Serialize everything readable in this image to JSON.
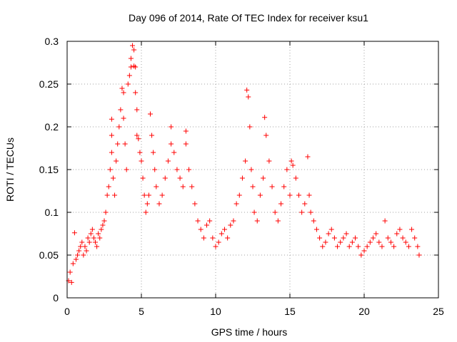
{
  "chart_data": {
    "type": "scatter",
    "title": "Day 096 of 2014, Rate Of TEC Index for receiver ksu1",
    "xlabel": "GPS time / hours",
    "ylabel": "ROTI / TECUs",
    "xlim": [
      0,
      25
    ],
    "ylim": [
      0,
      0.3
    ],
    "xticks": [
      0,
      5,
      10,
      15,
      20,
      25
    ],
    "yticks": [
      0,
      0.05,
      0.1,
      0.15,
      0.2,
      0.25,
      0.3
    ],
    "xtick_labels": [
      "0",
      "5",
      "10",
      "15",
      "20",
      "25"
    ],
    "ytick_labels": [
      "0",
      "0.05",
      "0.1",
      "0.15",
      "0.2",
      "0.25",
      "0.3"
    ],
    "grid": true,
    "marker": "+",
    "series": [
      {
        "name": "ROTI",
        "color": "#ff0000",
        "x": [
          0.1,
          0.2,
          0.3,
          0.4,
          0.5,
          0.6,
          0.7,
          0.8,
          0.9,
          1.0,
          1.1,
          1.2,
          1.3,
          1.4,
          1.5,
          1.6,
          1.7,
          1.8,
          1.9,
          2.0,
          2.1,
          2.2,
          2.3,
          2.4,
          2.5,
          2.6,
          2.7,
          2.8,
          2.9,
          3.0,
          3.0,
          3.0,
          3.1,
          3.2,
          3.3,
          3.4,
          3.5,
          3.6,
          3.7,
          3.8,
          3.8,
          3.9,
          4.0,
          4.1,
          4.2,
          4.3,
          4.3,
          4.4,
          4.5,
          4.5,
          4.6,
          4.6,
          4.7,
          4.7,
          4.8,
          4.9,
          5.0,
          5.1,
          5.2,
          5.3,
          5.4,
          5.5,
          5.6,
          5.7,
          5.8,
          5.9,
          6.0,
          6.2,
          6.4,
          6.6,
          6.8,
          7.0,
          7.0,
          7.2,
          7.4,
          7.6,
          7.8,
          8.0,
          8.0,
          8.2,
          8.4,
          8.6,
          8.8,
          9.0,
          9.2,
          9.4,
          9.6,
          9.8,
          10.0,
          10.2,
          10.4,
          10.6,
          10.8,
          11.0,
          11.2,
          11.4,
          11.6,
          11.8,
          12.0,
          12.1,
          12.2,
          12.3,
          12.4,
          12.5,
          12.6,
          12.8,
          13.0,
          13.2,
          13.3,
          13.4,
          13.6,
          13.8,
          14.0,
          14.2,
          14.4,
          14.6,
          14.8,
          15.0,
          15.1,
          15.2,
          15.4,
          15.6,
          15.8,
          16.0,
          16.2,
          16.3,
          16.4,
          16.6,
          16.8,
          17.0,
          17.2,
          17.4,
          17.6,
          17.8,
          18.0,
          18.2,
          18.4,
          18.6,
          18.8,
          19.0,
          19.2,
          19.4,
          19.6,
          19.8,
          20.0,
          20.2,
          20.4,
          20.6,
          20.8,
          21.0,
          21.2,
          21.4,
          21.6,
          21.8,
          22.0,
          22.2,
          22.4,
          22.6,
          22.8,
          23.0,
          23.2,
          23.4,
          23.6,
          23.7
        ],
        "y": [
          0.02,
          0.03,
          0.018,
          0.04,
          0.076,
          0.045,
          0.05,
          0.055,
          0.06,
          0.065,
          0.05,
          0.06,
          0.055,
          0.07,
          0.065,
          0.075,
          0.08,
          0.07,
          0.065,
          0.06,
          0.075,
          0.07,
          0.08,
          0.085,
          0.09,
          0.1,
          0.12,
          0.13,
          0.15,
          0.19,
          0.209,
          0.17,
          0.14,
          0.12,
          0.16,
          0.18,
          0.2,
          0.22,
          0.245,
          0.24,
          0.21,
          0.18,
          0.15,
          0.25,
          0.26,
          0.28,
          0.27,
          0.295,
          0.29,
          0.271,
          0.27,
          0.24,
          0.22,
          0.19,
          0.186,
          0.17,
          0.16,
          0.14,
          0.12,
          0.1,
          0.11,
          0.12,
          0.215,
          0.19,
          0.17,
          0.15,
          0.13,
          0.11,
          0.12,
          0.14,
          0.16,
          0.2,
          0.18,
          0.17,
          0.15,
          0.14,
          0.13,
          0.195,
          0.18,
          0.15,
          0.13,
          0.11,
          0.09,
          0.08,
          0.07,
          0.085,
          0.09,
          0.07,
          0.06,
          0.065,
          0.075,
          0.08,
          0.07,
          0.085,
          0.09,
          0.11,
          0.12,
          0.14,
          0.16,
          0.243,
          0.235,
          0.2,
          0.15,
          0.13,
          0.1,
          0.09,
          0.12,
          0.14,
          0.211,
          0.19,
          0.16,
          0.13,
          0.1,
          0.09,
          0.11,
          0.13,
          0.15,
          0.12,
          0.16,
          0.155,
          0.14,
          0.12,
          0.1,
          0.11,
          0.165,
          0.12,
          0.1,
          0.09,
          0.08,
          0.07,
          0.06,
          0.065,
          0.075,
          0.08,
          0.07,
          0.06,
          0.065,
          0.07,
          0.075,
          0.06,
          0.065,
          0.07,
          0.06,
          0.05,
          0.055,
          0.06,
          0.065,
          0.07,
          0.075,
          0.065,
          0.06,
          0.09,
          0.07,
          0.065,
          0.06,
          0.075,
          0.08,
          0.07,
          0.065,
          0.06,
          0.08,
          0.07,
          0.06,
          0.05
        ]
      }
    ]
  }
}
